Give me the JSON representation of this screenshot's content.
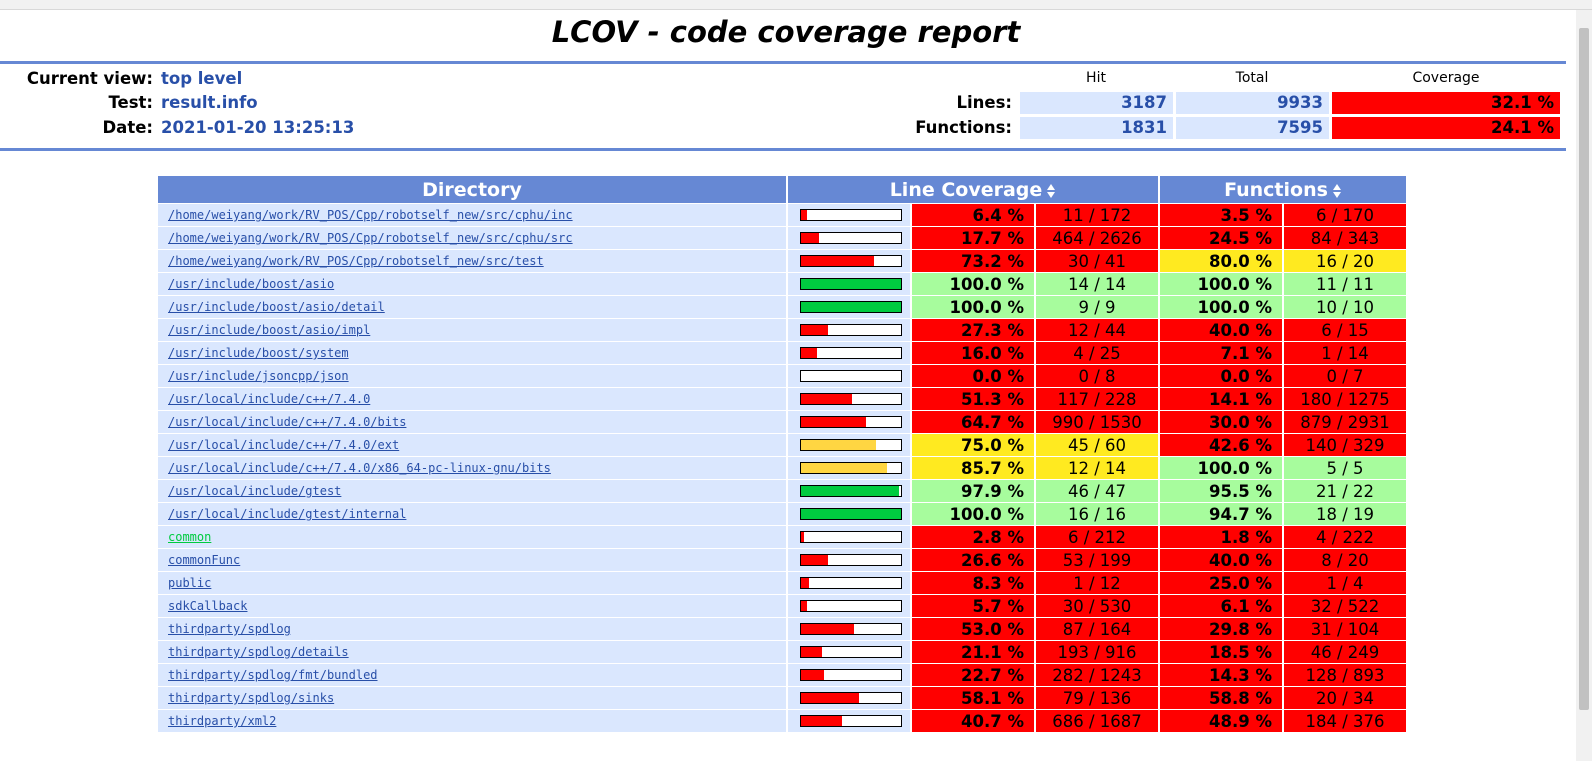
{
  "title": "LCOV - code coverage report",
  "header": {
    "current_view_label": "Current view:",
    "current_view_value": "top level",
    "test_label": "Test:",
    "test_value": "result.info",
    "date_label": "Date:",
    "date_value": "2021-01-20 13:25:13"
  },
  "summary": {
    "hit_header": "Hit",
    "total_header": "Total",
    "coverage_header": "Coverage",
    "lines_label": "Lines:",
    "lines_hit": "3187",
    "lines_total": "9933",
    "lines_coverage": "32.1 %",
    "functions_label": "Functions:",
    "functions_hit": "1831",
    "functions_total": "7595",
    "functions_coverage": "24.1 %"
  },
  "table": {
    "headers": [
      "Directory",
      "Line Coverage",
      "Functions"
    ],
    "rows": [
      {
        "dir": "/home/weiyang/work/RV_POS/Cpp/robotself_new/src/cphu/inc",
        "line_pct": "6.4 %",
        "line_cnt": "11 / 172",
        "line_frac": 0.064,
        "line_class": "lo",
        "fn_pct": "3.5 %",
        "fn_cnt": "6 / 170",
        "fn_class": "lo"
      },
      {
        "dir": "/home/weiyang/work/RV_POS/Cpp/robotself_new/src/cphu/src",
        "line_pct": "17.7 %",
        "line_cnt": "464 / 2626",
        "line_frac": 0.177,
        "line_class": "lo",
        "fn_pct": "24.5 %",
        "fn_cnt": "84 / 343",
        "fn_class": "lo"
      },
      {
        "dir": "/home/weiyang/work/RV_POS/Cpp/robotself_new/src/test",
        "line_pct": "73.2 %",
        "line_cnt": "30 / 41",
        "line_frac": 0.732,
        "line_class": "lo",
        "fn_pct": "80.0 %",
        "fn_cnt": "16 / 20",
        "fn_class": "med"
      },
      {
        "dir": "/usr/include/boost/asio",
        "line_pct": "100.0 %",
        "line_cnt": "14 / 14",
        "line_frac": 1.0,
        "line_class": "hi",
        "fn_pct": "100.0 %",
        "fn_cnt": "11 / 11",
        "fn_class": "hi"
      },
      {
        "dir": "/usr/include/boost/asio/detail",
        "line_pct": "100.0 %",
        "line_cnt": "9 / 9",
        "line_frac": 1.0,
        "line_class": "hi",
        "fn_pct": "100.0 %",
        "fn_cnt": "10 / 10",
        "fn_class": "hi"
      },
      {
        "dir": "/usr/include/boost/asio/impl",
        "line_pct": "27.3 %",
        "line_cnt": "12 / 44",
        "line_frac": 0.273,
        "line_class": "lo",
        "fn_pct": "40.0 %",
        "fn_cnt": "6 / 15",
        "fn_class": "lo"
      },
      {
        "dir": "/usr/include/boost/system",
        "line_pct": "16.0 %",
        "line_cnt": "4 / 25",
        "line_frac": 0.16,
        "line_class": "lo",
        "fn_pct": "7.1 %",
        "fn_cnt": "1 / 14",
        "fn_class": "lo"
      },
      {
        "dir": "/usr/include/jsoncpp/json",
        "line_pct": "0.0 %",
        "line_cnt": "0 / 8",
        "line_frac": 0.0,
        "line_class": "lo",
        "fn_pct": "0.0 %",
        "fn_cnt": "0 / 7",
        "fn_class": "lo"
      },
      {
        "dir": "/usr/local/include/c++/7.4.0",
        "line_pct": "51.3 %",
        "line_cnt": "117 / 228",
        "line_frac": 0.513,
        "line_class": "lo",
        "fn_pct": "14.1 %",
        "fn_cnt": "180 / 1275",
        "fn_class": "lo"
      },
      {
        "dir": "/usr/local/include/c++/7.4.0/bits",
        "line_pct": "64.7 %",
        "line_cnt": "990 / 1530",
        "line_frac": 0.647,
        "line_class": "lo",
        "fn_pct": "30.0 %",
        "fn_cnt": "879 / 2931",
        "fn_class": "lo"
      },
      {
        "dir": "/usr/local/include/c++/7.4.0/ext",
        "line_pct": "75.0 %",
        "line_cnt": "45 / 60",
        "line_frac": 0.75,
        "line_class": "med",
        "fn_pct": "42.6 %",
        "fn_cnt": "140 / 329",
        "fn_class": "lo"
      },
      {
        "dir": "/usr/local/include/c++/7.4.0/x86_64-pc-linux-gnu/bits",
        "line_pct": "85.7 %",
        "line_cnt": "12 / 14",
        "line_frac": 0.857,
        "line_class": "med",
        "fn_pct": "100.0 %",
        "fn_cnt": "5 / 5",
        "fn_class": "hi"
      },
      {
        "dir": "/usr/local/include/gtest",
        "line_pct": "97.9 %",
        "line_cnt": "46 / 47",
        "line_frac": 0.979,
        "line_class": "hi",
        "fn_pct": "95.5 %",
        "fn_cnt": "21 / 22",
        "fn_class": "hi"
      },
      {
        "dir": "/usr/local/include/gtest/internal",
        "line_pct": "100.0 %",
        "line_cnt": "16 / 16",
        "line_frac": 1.0,
        "line_class": "hi",
        "fn_pct": "94.7 %",
        "fn_cnt": "18 / 19",
        "fn_class": "hi"
      },
      {
        "dir": "common",
        "line_pct": "2.8 %",
        "line_cnt": "6 / 212",
        "line_frac": 0.028,
        "line_class": "lo",
        "fn_pct": "1.8 %",
        "fn_cnt": "4 / 222",
        "fn_class": "lo",
        "visited": true
      },
      {
        "dir": "commonFunc",
        "line_pct": "26.6 %",
        "line_cnt": "53 / 199",
        "line_frac": 0.266,
        "line_class": "lo",
        "fn_pct": "40.0 %",
        "fn_cnt": "8 / 20",
        "fn_class": "lo"
      },
      {
        "dir": "public",
        "line_pct": "8.3 %",
        "line_cnt": "1 / 12",
        "line_frac": 0.083,
        "line_class": "lo",
        "fn_pct": "25.0 %",
        "fn_cnt": "1 / 4",
        "fn_class": "lo"
      },
      {
        "dir": "sdkCallback",
        "line_pct": "5.7 %",
        "line_cnt": "30 / 530",
        "line_frac": 0.057,
        "line_class": "lo",
        "fn_pct": "6.1 %",
        "fn_cnt": "32 / 522",
        "fn_class": "lo"
      },
      {
        "dir": "thirdparty/spdlog",
        "line_pct": "53.0 %",
        "line_cnt": "87 / 164",
        "line_frac": 0.53,
        "line_class": "lo",
        "fn_pct": "29.8 %",
        "fn_cnt": "31 / 104",
        "fn_class": "lo"
      },
      {
        "dir": "thirdparty/spdlog/details",
        "line_pct": "21.1 %",
        "line_cnt": "193 / 916",
        "line_frac": 0.211,
        "line_class": "lo",
        "fn_pct": "18.5 %",
        "fn_cnt": "46 / 249",
        "fn_class": "lo"
      },
      {
        "dir": "thirdparty/spdlog/fmt/bundled",
        "line_pct": "22.7 %",
        "line_cnt": "282 / 1243",
        "line_frac": 0.227,
        "line_class": "lo",
        "fn_pct": "14.3 %",
        "fn_cnt": "128 / 893",
        "fn_class": "lo"
      },
      {
        "dir": "thirdparty/spdlog/sinks",
        "line_pct": "58.1 %",
        "line_cnt": "79 / 136",
        "line_frac": 0.581,
        "line_class": "lo",
        "fn_pct": "58.8 %",
        "fn_cnt": "20 / 34",
        "fn_class": "lo"
      },
      {
        "dir": "thirdparty/xml2",
        "line_pct": "40.7 %",
        "line_cnt": "686 / 1687",
        "line_frac": 0.407,
        "line_class": "lo",
        "fn_pct": "48.9 %",
        "fn_cnt": "184 / 376",
        "fn_class": "lo"
      }
    ]
  },
  "colors": {
    "header_blue": "#6688d4",
    "link_blue": "#284fa8",
    "row_blue": "#dae7fe",
    "hi": "#a7fc9d",
    "med": "#ffea20",
    "lo": "#ff0000",
    "bar_hi": "#00cb40",
    "bar_med": "#ffd642",
    "bar_lo": "#ff0000"
  }
}
